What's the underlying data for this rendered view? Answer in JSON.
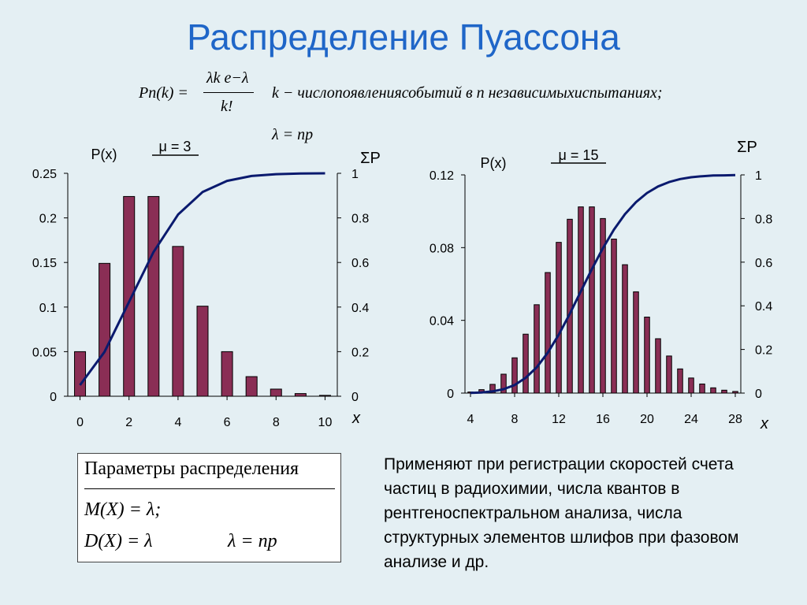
{
  "title": "Распределение Пуассона",
  "formula": {
    "lhs": "Pn(k) =",
    "numerator": "λk e−λ",
    "denominator": "k!",
    "k_desc": "k − числопоявлениясобытий в n независимыхиспытаниях;",
    "lambda_def": "λ = np"
  },
  "params_box": {
    "header": "Параметры распределения",
    "mean": "M(X) = λ;",
    "variance": "D(X) = λ",
    "lambda": "λ = np"
  },
  "description": "Применяют при регистрации скоростей счета частиц в радиохимии, числа квантов в рентгеноспектральном анализа, числа структурных элементов шлифов при фазовом анализе и др.",
  "colors": {
    "bar": "#8a2e55",
    "line": "#0a1a6e",
    "title": "#1f66c8"
  },
  "chart_data": [
    {
      "type": "bar",
      "annotation": "μ = 3",
      "ylabel": "P(x)",
      "y2label": "ΣP",
      "xlabel": "x",
      "x": [
        0,
        1,
        2,
        3,
        4,
        5,
        6,
        7,
        8,
        9,
        10
      ],
      "values": [
        0.05,
        0.149,
        0.224,
        0.224,
        0.168,
        0.101,
        0.05,
        0.022,
        0.008,
        0.003,
        0.001
      ],
      "cumulative": [
        0.05,
        0.199,
        0.423,
        0.647,
        0.815,
        0.916,
        0.966,
        0.988,
        0.996,
        0.999,
        1.0
      ],
      "xticks": [
        "0",
        "2",
        "4",
        "6",
        "8",
        "10"
      ],
      "xtick_values": [
        0,
        2,
        4,
        6,
        8,
        10
      ],
      "yticks": [
        "0",
        "0.05",
        "0.1",
        "0.15",
        "0.2",
        "0.25"
      ],
      "ytick_values": [
        0,
        0.05,
        0.1,
        0.15,
        0.2,
        0.25
      ],
      "y2ticks": [
        "0",
        "0.2",
        "0.4",
        "0.6",
        "0.8",
        "1"
      ],
      "y2tick_values": [
        0,
        0.2,
        0.4,
        0.6,
        0.8,
        1
      ],
      "xlim": [
        -0.5,
        10.5
      ],
      "ylim": [
        0,
        0.25
      ],
      "y2lim": [
        0,
        1
      ]
    },
    {
      "type": "bar",
      "annotation": "μ = 15",
      "ylabel": "P(x)",
      "y2label": "ΣP",
      "xlabel": "x",
      "x": [
        4,
        5,
        6,
        7,
        8,
        9,
        10,
        11,
        12,
        13,
        14,
        15,
        16,
        17,
        18,
        19,
        20,
        21,
        22,
        23,
        24,
        25,
        26,
        27,
        28
      ],
      "values": [
        0.0006,
        0.0019,
        0.0048,
        0.0104,
        0.0194,
        0.0324,
        0.0486,
        0.0663,
        0.0829,
        0.0956,
        0.1024,
        0.1024,
        0.096,
        0.0847,
        0.0706,
        0.0557,
        0.0418,
        0.0299,
        0.0204,
        0.0133,
        0.0083,
        0.005,
        0.0029,
        0.0016,
        0.0009
      ],
      "cumulative": [
        0.001,
        0.003,
        0.008,
        0.018,
        0.037,
        0.07,
        0.118,
        0.185,
        0.268,
        0.363,
        0.466,
        0.568,
        0.664,
        0.749,
        0.82,
        0.875,
        0.917,
        0.947,
        0.967,
        0.981,
        0.989,
        0.994,
        0.997,
        0.998,
        0.999
      ],
      "xticks": [
        "4",
        "8",
        "12",
        "16",
        "20",
        "24",
        "28"
      ],
      "xtick_values": [
        4,
        8,
        12,
        16,
        20,
        24,
        28
      ],
      "yticks": [
        "0",
        "0.04",
        "0.08",
        "0.12"
      ],
      "ytick_values": [
        0,
        0.04,
        0.08,
        0.12
      ],
      "y2ticks": [
        "0",
        "0.2",
        "0.4",
        "0.6",
        "0.8",
        "1"
      ],
      "y2tick_values": [
        0,
        0.2,
        0.4,
        0.6,
        0.8,
        1
      ],
      "xlim": [
        3.5,
        28.5
      ],
      "ylim": [
        0,
        0.12
      ],
      "y2lim": [
        0,
        1
      ]
    }
  ]
}
